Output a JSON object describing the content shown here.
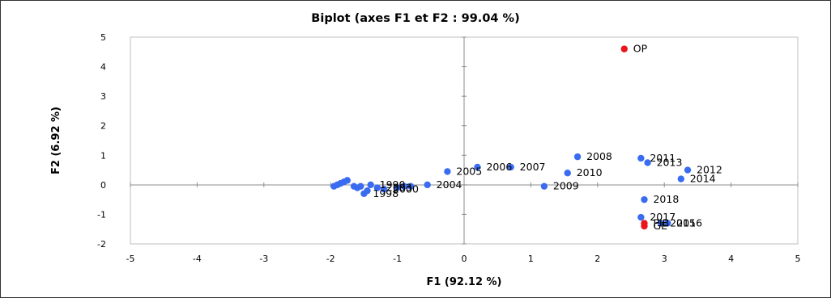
{
  "chart_data": {
    "type": "scatter",
    "title": "Biplot (axes F1 et F2 : 99.04 %)",
    "xlabel": "F1 (92.12 %)",
    "ylabel": "F2 (6.92 %)",
    "xlim": [
      -5,
      5
    ],
    "ylim": [
      -2,
      5
    ],
    "x_ticks": [
      "-5",
      "-4",
      "-3",
      "-2",
      "-1",
      "0",
      "1",
      "2",
      "3",
      "4",
      "5"
    ],
    "y_ticks": [
      "-2",
      "-1",
      "0",
      "1",
      "2",
      "3",
      "4",
      "5"
    ],
    "grid": false,
    "colors": {
      "observations": "#3a6cf2",
      "variables": "#e8171d"
    },
    "series": [
      {
        "name": "",
        "color": "#3a6cf2",
        "points": [
          {
            "x": -1.95,
            "y": -0.05,
            "label": ""
          },
          {
            "x": -1.9,
            "y": 0.0,
            "label": ""
          },
          {
            "x": -1.85,
            "y": 0.05,
            "label": ""
          },
          {
            "x": -1.8,
            "y": 0.1,
            "label": ""
          },
          {
            "x": -1.75,
            "y": 0.15,
            "label": ""
          },
          {
            "x": -1.65,
            "y": -0.05,
            "label": ""
          },
          {
            "x": -1.6,
            "y": -0.1,
            "label": ""
          },
          {
            "x": -1.55,
            "y": -0.05,
            "label": ""
          },
          {
            "x": -1.5,
            "y": -0.3,
            "label": "1998"
          },
          {
            "x": -1.45,
            "y": -0.2,
            "label": ""
          },
          {
            "x": -1.4,
            "y": 0.0,
            "label": "1990"
          },
          {
            "x": -1.3,
            "y": -0.1,
            "label": "2003"
          },
          {
            "x": -1.2,
            "y": -0.15,
            "label": "2000"
          },
          {
            "x": -1.0,
            "y": -0.1,
            "label": ""
          },
          {
            "x": -0.9,
            "y": -0.05,
            "label": ""
          },
          {
            "x": -0.8,
            "y": -0.05,
            "label": ""
          },
          {
            "x": -0.55,
            "y": 0.0,
            "label": "2004"
          },
          {
            "x": -0.25,
            "y": 0.45,
            "label": "2005"
          },
          {
            "x": 0.2,
            "y": 0.6,
            "label": "2006"
          },
          {
            "x": 0.7,
            "y": 0.6,
            "label": "2007"
          },
          {
            "x": 1.2,
            "y": -0.05,
            "label": "2009"
          },
          {
            "x": 1.55,
            "y": 0.4,
            "label": "2010"
          },
          {
            "x": 1.7,
            "y": 0.95,
            "label": "2008"
          },
          {
            "x": 2.65,
            "y": 0.9,
            "label": "2011"
          },
          {
            "x": 2.75,
            "y": 0.75,
            "label": "2013"
          },
          {
            "x": 3.35,
            "y": 0.5,
            "label": "2012"
          },
          {
            "x": 3.25,
            "y": 0.2,
            "label": "2014"
          },
          {
            "x": 2.7,
            "y": -0.5,
            "label": "2018"
          },
          {
            "x": 2.65,
            "y": -1.1,
            "label": "2017"
          },
          {
            "x": 2.95,
            "y": -1.3,
            "label": "2015"
          },
          {
            "x": 3.05,
            "y": -1.3,
            "label": "2016"
          }
        ]
      },
      {
        "name": "",
        "color": "#e8171d",
        "points": [
          {
            "x": 2.4,
            "y": 4.6,
            "label": "OP"
          },
          {
            "x": 2.7,
            "y": -1.3,
            "label": "PIB"
          },
          {
            "x": 2.7,
            "y": -1.4,
            "label": "GE"
          }
        ]
      }
    ]
  }
}
